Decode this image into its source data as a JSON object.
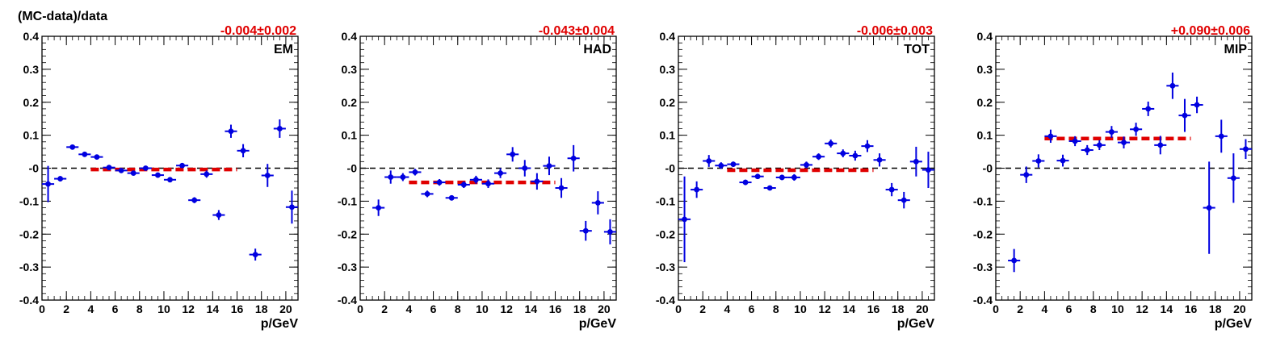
{
  "figure": {
    "ylabel": "(MC-data)/data",
    "xlabel": "p/GeV"
  },
  "colors": {
    "data_points": "#0000e0",
    "fit_line": "#e00000",
    "zero_line": "#000000",
    "frame": "#000000",
    "fit_label": "#e00000"
  },
  "axes": {
    "x_ticks": [
      0,
      2,
      4,
      6,
      8,
      10,
      12,
      14,
      16,
      18,
      20
    ],
    "y_ticks": [
      -0.4,
      -0.3,
      -0.2,
      -0.1,
      0,
      0.1,
      0.2,
      0.3,
      0.4
    ],
    "y_tick_labels": [
      "-0.4",
      "-0.3",
      "-0.2",
      "-0.1",
      "-0",
      "0.1",
      "0.2",
      "0.3",
      "0.4"
    ]
  },
  "chart_data": [
    {
      "type": "scatter",
      "title": "EM",
      "fit_label": "-0.004±0.002",
      "fit": {
        "value": -0.004,
        "x_range": [
          4,
          16
        ]
      },
      "xlim": [
        0,
        21
      ],
      "ylim": [
        -0.4,
        0.4
      ],
      "grid": false,
      "log_scale": false,
      "points": [
        {
          "x": 0.5,
          "y": -0.048,
          "err": 0.055
        },
        {
          "x": 1.5,
          "y": -0.032,
          "err": 0.008
        },
        {
          "x": 2.5,
          "y": 0.064,
          "err": 0.006
        },
        {
          "x": 3.5,
          "y": 0.042,
          "err": 0.005
        },
        {
          "x": 4.5,
          "y": 0.034,
          "err": 0.005
        },
        {
          "x": 5.5,
          "y": 0.002,
          "err": 0.004
        },
        {
          "x": 6.5,
          "y": -0.007,
          "err": 0.005
        },
        {
          "x": 7.5,
          "y": -0.015,
          "err": 0.006
        },
        {
          "x": 8.5,
          "y": 0.0,
          "err": 0.006
        },
        {
          "x": 9.5,
          "y": -0.021,
          "err": 0.006
        },
        {
          "x": 10.5,
          "y": -0.035,
          "err": 0.007
        },
        {
          "x": 11.5,
          "y": 0.008,
          "err": 0.008
        },
        {
          "x": 12.5,
          "y": -0.097,
          "err": 0.009
        },
        {
          "x": 13.5,
          "y": -0.018,
          "err": 0.011
        },
        {
          "x": 14.5,
          "y": -0.142,
          "err": 0.015
        },
        {
          "x": 15.5,
          "y": 0.112,
          "err": 0.02
        },
        {
          "x": 16.5,
          "y": 0.053,
          "err": 0.02
        },
        {
          "x": 17.5,
          "y": -0.262,
          "err": 0.018
        },
        {
          "x": 18.5,
          "y": -0.022,
          "err": 0.035
        },
        {
          "x": 19.5,
          "y": 0.12,
          "err": 0.028
        },
        {
          "x": 20.5,
          "y": -0.118,
          "err": 0.05
        }
      ]
    },
    {
      "type": "scatter",
      "title": "HAD",
      "fit_label": "-0.043±0.004",
      "fit": {
        "value": -0.043,
        "x_range": [
          4,
          16
        ]
      },
      "xlim": [
        0,
        21
      ],
      "ylim": [
        -0.4,
        0.4
      ],
      "grid": false,
      "log_scale": false,
      "points": [
        {
          "x": 1.5,
          "y": -0.12,
          "err": 0.025
        },
        {
          "x": 2.5,
          "y": -0.027,
          "err": 0.02
        },
        {
          "x": 3.5,
          "y": -0.027,
          "err": 0.012
        },
        {
          "x": 4.5,
          "y": -0.012,
          "err": 0.01
        },
        {
          "x": 5.5,
          "y": -0.078,
          "err": 0.01
        },
        {
          "x": 6.5,
          "y": -0.043,
          "err": 0.01
        },
        {
          "x": 7.5,
          "y": -0.09,
          "err": 0.008
        },
        {
          "x": 8.5,
          "y": -0.05,
          "err": 0.01
        },
        {
          "x": 9.5,
          "y": -0.035,
          "err": 0.012
        },
        {
          "x": 10.5,
          "y": -0.047,
          "err": 0.013
        },
        {
          "x": 11.5,
          "y": -0.015,
          "err": 0.015
        },
        {
          "x": 12.5,
          "y": 0.042,
          "err": 0.022
        },
        {
          "x": 13.5,
          "y": 0.0,
          "err": 0.025
        },
        {
          "x": 14.5,
          "y": -0.04,
          "err": 0.025
        },
        {
          "x": 15.5,
          "y": 0.007,
          "err": 0.028
        },
        {
          "x": 16.5,
          "y": -0.06,
          "err": 0.03
        },
        {
          "x": 17.5,
          "y": 0.03,
          "err": 0.04
        },
        {
          "x": 18.5,
          "y": -0.19,
          "err": 0.03
        },
        {
          "x": 19.5,
          "y": -0.105,
          "err": 0.035
        },
        {
          "x": 20.5,
          "y": -0.193,
          "err": 0.038
        }
      ]
    },
    {
      "type": "scatter",
      "title": "TOT",
      "fit_label": "-0.006±0.003",
      "fit": {
        "value": -0.006,
        "x_range": [
          4,
          16
        ]
      },
      "xlim": [
        0,
        21
      ],
      "ylim": [
        -0.4,
        0.4
      ],
      "grid": false,
      "log_scale": false,
      "points": [
        {
          "x": 0.5,
          "y": -0.155,
          "err": 0.13
        },
        {
          "x": 1.5,
          "y": -0.065,
          "err": 0.025
        },
        {
          "x": 2.5,
          "y": 0.022,
          "err": 0.018
        },
        {
          "x": 3.5,
          "y": 0.008,
          "err": 0.01
        },
        {
          "x": 4.5,
          "y": 0.012,
          "err": 0.008
        },
        {
          "x": 5.5,
          "y": -0.043,
          "err": 0.008
        },
        {
          "x": 6.5,
          "y": -0.025,
          "err": 0.008
        },
        {
          "x": 7.5,
          "y": -0.06,
          "err": 0.007
        },
        {
          "x": 8.5,
          "y": -0.028,
          "err": 0.008
        },
        {
          "x": 9.5,
          "y": -0.028,
          "err": 0.01
        },
        {
          "x": 10.5,
          "y": 0.01,
          "err": 0.01
        },
        {
          "x": 11.5,
          "y": 0.035,
          "err": 0.01
        },
        {
          "x": 12.5,
          "y": 0.075,
          "err": 0.012
        },
        {
          "x": 13.5,
          "y": 0.045,
          "err": 0.012
        },
        {
          "x": 14.5,
          "y": 0.038,
          "err": 0.015
        },
        {
          "x": 15.5,
          "y": 0.067,
          "err": 0.018
        },
        {
          "x": 16.5,
          "y": 0.025,
          "err": 0.02
        },
        {
          "x": 17.5,
          "y": -0.065,
          "err": 0.02
        },
        {
          "x": 18.5,
          "y": -0.097,
          "err": 0.025
        },
        {
          "x": 19.5,
          "y": 0.02,
          "err": 0.045
        },
        {
          "x": 20.5,
          "y": -0.005,
          "err": 0.055
        }
      ]
    },
    {
      "type": "scatter",
      "title": "MIP",
      "fit_label": "+0.090±0.006",
      "fit": {
        "value": 0.09,
        "x_range": [
          4,
          16
        ]
      },
      "xlim": [
        0,
        21
      ],
      "ylim": [
        -0.4,
        0.4
      ],
      "grid": false,
      "log_scale": false,
      "points": [
        {
          "x": 1.5,
          "y": -0.28,
          "err": 0.035
        },
        {
          "x": 2.5,
          "y": -0.02,
          "err": 0.025
        },
        {
          "x": 3.5,
          "y": 0.022,
          "err": 0.02
        },
        {
          "x": 4.5,
          "y": 0.097,
          "err": 0.02
        },
        {
          "x": 5.5,
          "y": 0.023,
          "err": 0.018
        },
        {
          "x": 6.5,
          "y": 0.082,
          "err": 0.015
        },
        {
          "x": 7.5,
          "y": 0.055,
          "err": 0.015
        },
        {
          "x": 8.5,
          "y": 0.07,
          "err": 0.015
        },
        {
          "x": 9.5,
          "y": 0.11,
          "err": 0.018
        },
        {
          "x": 10.5,
          "y": 0.078,
          "err": 0.018
        },
        {
          "x": 11.5,
          "y": 0.118,
          "err": 0.02
        },
        {
          "x": 12.5,
          "y": 0.18,
          "err": 0.022
        },
        {
          "x": 13.5,
          "y": 0.07,
          "err": 0.028
        },
        {
          "x": 14.5,
          "y": 0.25,
          "err": 0.04
        },
        {
          "x": 15.5,
          "y": 0.16,
          "err": 0.05
        },
        {
          "x": 16.5,
          "y": 0.192,
          "err": 0.025
        },
        {
          "x": 17.5,
          "y": -0.12,
          "err": 0.14
        },
        {
          "x": 18.5,
          "y": 0.097,
          "err": 0.05
        },
        {
          "x": 19.5,
          "y": -0.03,
          "err": 0.075
        },
        {
          "x": 20.5,
          "y": 0.058,
          "err": 0.03
        }
      ]
    }
  ]
}
